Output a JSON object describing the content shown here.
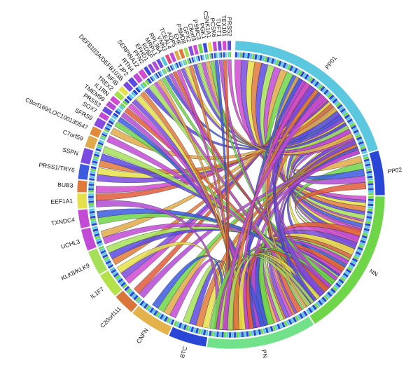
{
  "diagram": {
    "type": "chord",
    "segments": [
      {
        "label": "PP01",
        "color": "#5bc8e0",
        "weight": 58
      },
      {
        "label": "PP02",
        "color": "#2a46d6",
        "weight": 14
      },
      {
        "label": "NN",
        "color": "#6fd64a",
        "weight": 46
      },
      {
        "label": "PN",
        "color": "#72e28a",
        "weight": 34
      },
      {
        "label": "BTC",
        "color": "#2a46d6",
        "weight": 12
      },
      {
        "label": "CNFN",
        "color": "#e4b24a",
        "weight": 13
      },
      {
        "label": "C20orf111",
        "color": "#d9743a",
        "weight": 7
      },
      {
        "label": "IL1F7",
        "color": "#b4e04a",
        "weight": 8
      },
      {
        "label": "KLK8/KLK9",
        "color": "#a6e05a",
        "weight": 8
      },
      {
        "label": "UCHL3",
        "color": "#c24ad6",
        "weight": 7
      },
      {
        "label": "TXNDC4",
        "color": "#c24ad6",
        "weight": 6
      },
      {
        "label": "EEF1A1",
        "color": "#e6e04a",
        "weight": 5
      },
      {
        "label": "BUB3",
        "color": "#e07a3a",
        "weight": 4
      },
      {
        "label": "PRSS1/TRY6",
        "color": "#3c5ae0",
        "weight": 5
      },
      {
        "label": "SSPN",
        "color": "#7a4ae0",
        "weight": 5
      },
      {
        "label": "C7orf59",
        "color": "#e0aa4a",
        "weight": 4
      },
      {
        "label": "C9orf169/LOC100130547",
        "color": "#e08a3a",
        "weight": 3
      },
      {
        "label": "SFRS9",
        "color": "#8a4ae0",
        "weight": 3
      },
      {
        "label": "SOX7",
        "color": "#c24ad6",
        "weight": 2
      },
      {
        "label": "PRSS3",
        "color": "#6a4ae0",
        "weight": 2
      },
      {
        "label": "TMEM99",
        "color": "#b44ad6",
        "weight": 2
      },
      {
        "label": "IL1RN",
        "color": "#d04ad0",
        "weight": 2
      },
      {
        "label": "TREX2",
        "color": "#a4e04a",
        "weight": 2
      },
      {
        "label": "NFIB",
        "color": "#e6e04a",
        "weight": 2
      },
      {
        "label": "DEFB103A/DEFB103B",
        "color": "#7a4ae0",
        "weight": 2
      },
      {
        "label": "TJP2",
        "color": "#5a4ae0",
        "weight": 2
      },
      {
        "label": "RTN4",
        "color": "#c24ad6",
        "weight": 2
      },
      {
        "label": "SERPINA12",
        "color": "#d64ad0",
        "weight": 2
      },
      {
        "label": "PFN2",
        "color": "#3c4ae0",
        "weight": 1.5
      },
      {
        "label": "EFHD1",
        "color": "#8a4ae0",
        "weight": 1.5
      },
      {
        "label": "RDBP",
        "color": "#b44ad6",
        "weight": 1.5
      },
      {
        "label": "MRPL1",
        "color": "#6a4ae0",
        "weight": 1.5
      },
      {
        "label": "RPL36A",
        "color": "#5bc8e0",
        "weight": 1.5
      },
      {
        "label": "VNN3",
        "color": "#e04a7a",
        "weight": 1.5
      },
      {
        "label": "TCEAL4",
        "color": "#c24ad6",
        "weight": 1.5
      },
      {
        "label": "AQP5",
        "color": "#e0aa4a",
        "weight": 1.5
      },
      {
        "label": "EHF",
        "color": "#e07a3a",
        "weight": 1.5
      },
      {
        "label": "PSMD8",
        "color": "#a6e05a",
        "weight": 1.5
      },
      {
        "label": "GPX2",
        "color": "#8a4ae0",
        "weight": 1.5
      },
      {
        "label": "C8orf3",
        "color": "#d04ad0",
        "weight": 1.5
      },
      {
        "label": "PSMC3",
        "color": "#6fd64a",
        "weight": 1.5
      },
      {
        "label": "PGK1",
        "color": "#3c4ae0",
        "weight": 1.5
      },
      {
        "label": "CSNK1A1",
        "color": "#e6e04a",
        "weight": 1.5
      },
      {
        "label": "PCSK6",
        "color": "#c24ad6",
        "weight": 1.5
      },
      {
        "label": "TUFT1",
        "color": "#7a4ae0",
        "weight": 1.5
      },
      {
        "label": "TEX101",
        "color": "#d64ad0",
        "weight": 1.5
      },
      {
        "label": "PRSS2",
        "color": "#5a4ae0",
        "weight": 1.5
      }
    ],
    "ribbon_colors": [
      "#d04ad0",
      "#7a4ae0",
      "#e6e04a",
      "#e07a3a",
      "#5a4ae0",
      "#a6e05a",
      "#c24ad6",
      "#e0aa4a",
      "#6fd64a",
      "#3c5ae0",
      "#b44ad6",
      "#e05a3a"
    ],
    "inner_band_colors": [
      "#2a46d6",
      "#5bc8e0",
      "#6fd64a",
      "#2a46d6",
      "#5bc8e0"
    ]
  }
}
